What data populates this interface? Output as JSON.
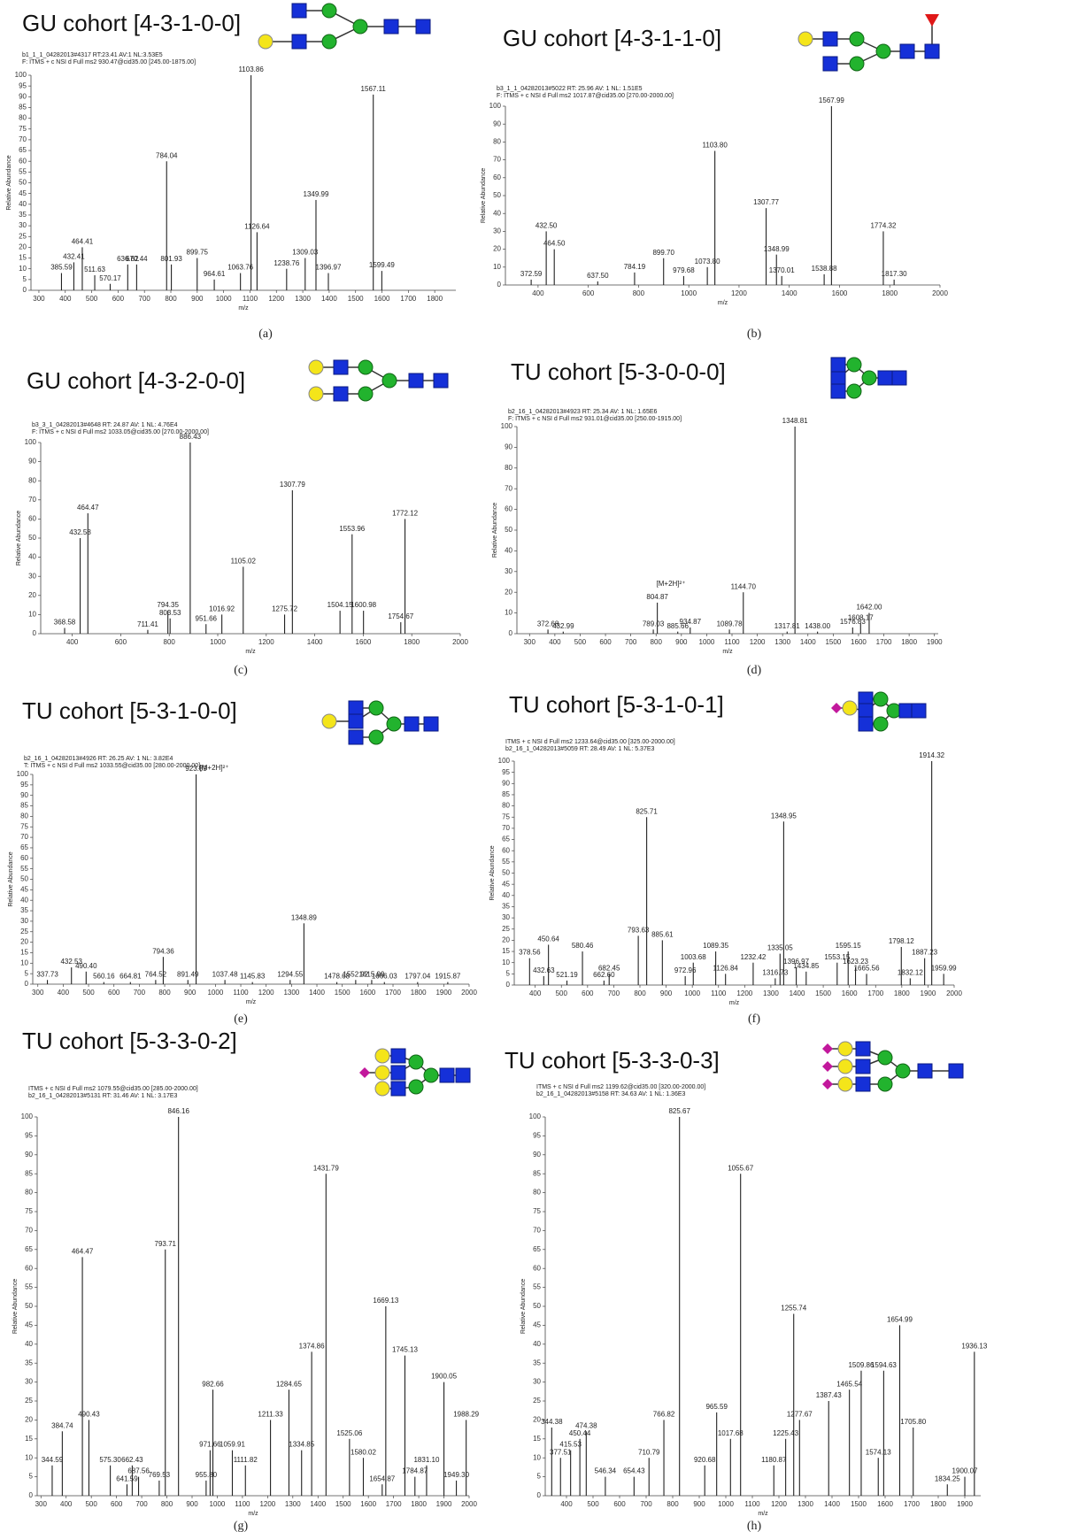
{
  "chart_data": [
    {
      "type": "stem",
      "title": "GU cohort [4-3-1-0-0]",
      "caption": "(a)",
      "x_label": "m/z",
      "y_label": "Relative Abundance",
      "header_lines": [
        "b1_1_1_04282013#4317 RT:23.41 AV:1 NL:3.53E5",
        "F: ITMS + c NSI d Full ms2 930.47@cid35.00 [245.00-1875.00]"
      ],
      "header_colors": [
        "#2a3aa8",
        "#d02020"
      ],
      "color": "#222222",
      "xlim": [
        270,
        1880
      ],
      "ylim": [
        0,
        100
      ],
      "xticks": [
        300,
        400,
        500,
        600,
        700,
        800,
        900,
        1000,
        1100,
        1200,
        1300,
        1400,
        1500,
        1600,
        1700,
        1800
      ],
      "yticks": [
        0,
        5,
        10,
        15,
        20,
        25,
        30,
        35,
        40,
        45,
        50,
        55,
        60,
        65,
        70,
        75,
        80,
        85,
        90,
        95,
        100
      ],
      "x": [
        385.59,
        432.41,
        464.41,
        511.63,
        570.17,
        636.62,
        670.44,
        784.04,
        801.93,
        899.75,
        964.61,
        1063.76,
        1103.86,
        1126.64,
        1238.76,
        1309.03,
        1349.99,
        1396.97,
        1567.11,
        1599.49
      ],
      "x_labels": [
        "385.59",
        "432.41",
        "464.41",
        "511.63",
        "570.17",
        "636.62",
        "670.44",
        "784.04",
        "801.93",
        "899.75",
        "964.61",
        "1063.76",
        "1103.86",
        "1126.64",
        "1238.76",
        "1309.03",
        "1349.99",
        "1396.97",
        "1567.11",
        "1599.49"
      ],
      "values": [
        8,
        13,
        20,
        7,
        3,
        12,
        12,
        60,
        12,
        15,
        5,
        8,
        100,
        27,
        10,
        15,
        42,
        8,
        91,
        9
      ]
    },
    {
      "type": "stem",
      "title": "GU cohort [4-3-1-1-0]",
      "caption": "(b)",
      "x_label": "m/z",
      "y_label": "Relative Abundance",
      "header_lines": [
        "b3_1_1_04282013#5022 RT: 25.96 AV: 1 NL: 1.51E5",
        "F: ITMS + c NSI d Full ms2 1017.87@cid35.00 [270.00-2000.00]"
      ],
      "header_colors": [
        "#2a3aa8",
        "#d02020"
      ],
      "color": "#222222",
      "xlim": [
        270,
        2000
      ],
      "ylim": [
        0,
        100
      ],
      "xticks": [
        400,
        600,
        800,
        1000,
        1200,
        1400,
        1600,
        1800,
        2000
      ],
      "yticks": [
        0,
        10,
        20,
        30,
        40,
        50,
        60,
        70,
        80,
        90,
        100
      ],
      "x": [
        372.59,
        432.5,
        464.5,
        637.5,
        784.19,
        899.7,
        979.68,
        1073.8,
        1103.8,
        1307.77,
        1348.99,
        1370.01,
        1538.88,
        1567.99,
        1774.32,
        1817.3
      ],
      "x_labels": [
        "372.59",
        "432.50",
        "464.50",
        "637.50",
        "784.19",
        "899.70",
        "979.68",
        "1073.80",
        "1103.80",
        "1307.77",
        "1348.99",
        "1370.01",
        "1538.88",
        "1567.99",
        "1774.32",
        "1817.30"
      ],
      "values": [
        3,
        30,
        20,
        2,
        7,
        15,
        5,
        10,
        75,
        43,
        17,
        5,
        6,
        100,
        30,
        3
      ]
    },
    {
      "type": "stem",
      "title": "GU cohort [4-3-2-0-0]",
      "caption": "(c)",
      "x_label": "m/z",
      "y_label": "Relative Abundance",
      "header_lines": [
        "b3_3_1_04282013#4648 RT: 24.87 AV: 1 NL: 4.76E4",
        "F: ITMS + c NSI d Full ms2 1033.05@cid35.00 [270.00-2000.00]"
      ],
      "header_colors": [
        "#2a3aa8",
        "#d02020"
      ],
      "color": "#222222",
      "xlim": [
        270,
        2000
      ],
      "ylim": [
        0,
        100
      ],
      "xticks": [
        400,
        600,
        800,
        1000,
        1200,
        1400,
        1600,
        1800,
        2000
      ],
      "yticks": [
        0,
        10,
        20,
        30,
        40,
        50,
        60,
        70,
        80,
        90,
        100
      ],
      "x": [
        368.58,
        432.58,
        464.47,
        711.41,
        794.35,
        803.53,
        886.43,
        951.66,
        1016.92,
        1105.02,
        1275.72,
        1307.79,
        1504.15,
        1553.96,
        1600.98,
        1754.67,
        1772.12
      ],
      "x_labels": [
        "368.58",
        "432.58",
        "464.47",
        "711.41",
        "794.35",
        "803.53",
        "886.43",
        "951.66",
        "1016.92",
        "1105.02",
        "1275.72",
        "1307.79",
        "1504.15",
        "1553.96",
        "1600.98",
        "1754.67",
        "1772.12"
      ],
      "values": [
        3,
        50,
        63,
        2,
        12,
        8,
        100,
        5,
        10,
        35,
        10,
        75,
        12,
        52,
        12,
        6,
        60
      ]
    },
    {
      "type": "stem",
      "title": "TU cohort [5-3-0-0-0]",
      "caption": "(d)",
      "x_label": "m/z",
      "y_label": "Relative Abundance",
      "annotation": "[M+2H]²⁺",
      "header_lines": [
        "b2_16_1_04282013#4923 RT: 25.34 AV: 1 NL: 1.65E6",
        "F: ITMS + c NSI d Full ms2 931.01@cid35.00 [250.00-1915.00]"
      ],
      "header_colors": [
        "#2a3aa8",
        "#d02020"
      ],
      "color": "#222222",
      "xlim": [
        250,
        1915
      ],
      "ylim": [
        0,
        100
      ],
      "xticks": [
        300,
        400,
        500,
        600,
        700,
        800,
        900,
        1000,
        1100,
        1200,
        1300,
        1400,
        1500,
        1600,
        1700,
        1800,
        1900
      ],
      "yticks": [
        0,
        10,
        20,
        30,
        40,
        50,
        60,
        70,
        80,
        90,
        100
      ],
      "x": [
        372.68,
        432.99,
        789.03,
        804.87,
        885.66,
        934.87,
        1089.78,
        1144.7,
        1317.81,
        1348.81,
        1438.0,
        1576.83,
        1608.17,
        1642.0
      ],
      "x_labels": [
        "372.68",
        "432.99",
        "789.03",
        "804.87",
        "885.66",
        "934.87",
        "1089.78",
        "1144.70",
        "1317.81",
        "1348.81",
        "1438.00",
        "1576.83",
        "1608.17",
        "1642.00"
      ],
      "values": [
        2,
        1,
        2,
        15,
        1,
        3,
        2,
        20,
        1,
        100,
        1,
        3,
        5,
        10
      ]
    },
    {
      "type": "stem",
      "title": "TU cohort [5-3-1-0-0]",
      "caption": "(e)",
      "x_label": "m/z",
      "y_label": "Relative Abundance",
      "annotation": "[M+2H]²⁺",
      "header_lines": [
        "b2_16_1_04282013#4926 RT: 26.25 AV: 1 NL: 3.82E4",
        "T: ITMS + c NSI d Full ms2 1033.55@cid35.00 [280.00-2000.00]"
      ],
      "header_colors": [
        "#2a3aa8",
        "#d02020"
      ],
      "color": "#222222",
      "xlim": [
        280,
        2000
      ],
      "ylim": [
        0,
        100
      ],
      "xticks": [
        300,
        400,
        500,
        600,
        700,
        800,
        900,
        1000,
        1100,
        1200,
        1300,
        1400,
        1500,
        1600,
        1700,
        1800,
        1900,
        2000
      ],
      "yticks": [
        0,
        5,
        10,
        15,
        20,
        25,
        30,
        35,
        40,
        45,
        50,
        55,
        60,
        65,
        70,
        75,
        80,
        85,
        90,
        95,
        100
      ],
      "x": [
        337.73,
        432.53,
        490.4,
        560.16,
        664.81,
        764.52,
        794.36,
        891.49,
        923.89,
        1037.48,
        1145.83,
        1294.55,
        1348.89,
        1478.68,
        1552.92,
        1615.99,
        1666.03,
        1797.04,
        1915.87
      ],
      "x_labels": [
        "337.73",
        "432.53",
        "490.40",
        "560.16",
        "664.81",
        "764.52",
        "794.36",
        "891.49",
        "923.89",
        "1037.48",
        "1145.83",
        "1294.55",
        "1348.89",
        "1478.68",
        "1552.92",
        "1615.99",
        "1666.03",
        "1797.04",
        "1915.87"
      ],
      "values": [
        2,
        8,
        6,
        1,
        1,
        2,
        13,
        2,
        100,
        2,
        1,
        2,
        29,
        1,
        2,
        2,
        1,
        1,
        1
      ]
    },
    {
      "type": "stem",
      "title": "TU cohort [5-3-1-0-1]",
      "caption": "(f)",
      "x_label": "m/z",
      "y_label": "Relative Abundance",
      "header_lines": [
        "ITMS + c NSI d Full ms2 1233.64@cid35.00 [325.00-2000.00]",
        "b2_16_1_04282013#5059 RT: 28.49 AV: 1 NL: 5.37E3"
      ],
      "header_colors": [
        "#2a3aa8",
        "#2a3aa8"
      ],
      "color": "#222222",
      "xlim": [
        320,
        2000
      ],
      "ylim": [
        0,
        100
      ],
      "xticks": [
        400,
        500,
        600,
        700,
        800,
        900,
        1000,
        1100,
        1200,
        1300,
        1400,
        1500,
        1600,
        1700,
        1800,
        1900,
        2000
      ],
      "yticks": [
        0,
        5,
        10,
        15,
        20,
        25,
        30,
        35,
        40,
        45,
        50,
        55,
        60,
        65,
        70,
        75,
        80,
        85,
        90,
        95,
        100
      ],
      "x": [
        378.56,
        432.63,
        450.64,
        521.19,
        580.46,
        662.6,
        682.45,
        793.63,
        825.71,
        885.61,
        972.96,
        1003.68,
        1089.35,
        1126.84,
        1232.42,
        1316.73,
        1335.05,
        1348.95,
        1396.97,
        1434.85,
        1553.15,
        1595.15,
        1623.23,
        1665.56,
        1798.12,
        1832.12,
        1887.23,
        1914.32,
        1959.99
      ],
      "x_labels": [
        "378.56",
        "432.63",
        "450.64",
        "521.19",
        "580.46",
        "662.60",
        "682.45",
        "793.63",
        "825.71",
        "885.61",
        "972.96",
        "1003.68",
        "1089.35",
        "1126.84",
        "1232.42",
        "1316.73",
        "1335.05",
        "1348.95",
        "1396.97",
        "1434.85",
        "1553.15",
        "1595.15",
        "1623.23",
        "1665.56",
        "1798.12",
        "1832.12",
        "1887.23",
        "1914.32",
        "1959.99"
      ],
      "values": [
        12,
        4,
        18,
        2,
        15,
        2,
        5,
        22,
        75,
        20,
        4,
        10,
        15,
        5,
        10,
        3,
        14,
        73,
        8,
        6,
        10,
        15,
        8,
        5,
        17,
        3,
        12,
        100,
        5
      ]
    },
    {
      "type": "stem",
      "title": "TU cohort [5-3-3-0-2]",
      "caption": "(g)",
      "x_label": "m/z",
      "y_label": "Relative Abundance",
      "header_lines": [
        "ITMS + c NSI d Full ms2 1079.55@cid35.00 [285.00-2000.00]",
        "b2_16_1_04282013#5131 RT: 31.46 AV: 1 NL: 3.17E3"
      ],
      "header_colors": [
        "#d02020",
        "#2a3aa8"
      ],
      "color": "#222222",
      "xlim": [
        285,
        2000
      ],
      "ylim": [
        0,
        100
      ],
      "xticks": [
        300,
        400,
        500,
        600,
        700,
        800,
        900,
        1000,
        1100,
        1200,
        1300,
        1400,
        1500,
        1600,
        1700,
        1800,
        1900,
        2000
      ],
      "yticks": [
        0,
        5,
        10,
        15,
        20,
        25,
        30,
        35,
        40,
        45,
        50,
        55,
        60,
        65,
        70,
        75,
        80,
        85,
        90,
        95,
        100
      ],
      "x": [
        344.59,
        384.74,
        464.47,
        490.43,
        575.3,
        641.59,
        662.43,
        687.56,
        769.53,
        793.71,
        846.16,
        955.8,
        971.66,
        982.66,
        1059.91,
        1111.82,
        1211.33,
        1284.65,
        1334.85,
        1374.86,
        1431.79,
        1525.06,
        1580.02,
        1654.87,
        1669.13,
        1745.13,
        1784.87,
        1831.1,
        1900.05,
        1949.3,
        1988.29
      ],
      "x_labels": [
        "344.59",
        "384.74",
        "464.47",
        "490.43",
        "575.30",
        "641.59",
        "662.43",
        "687.56",
        "769.53",
        "793.71",
        "846.16",
        "955.80",
        "971.66",
        "982.66",
        "1059.91",
        "1111.82",
        "1211.33",
        "1284.65",
        "1334.85",
        "1374.86",
        "1431.79",
        "1525.06",
        "1580.02",
        "1654.87",
        "1669.13",
        "1745.13",
        "1784.87",
        "1831.10",
        "1900.05",
        "1949.30",
        "1988.29"
      ],
      "values": [
        8,
        17,
        63,
        20,
        8,
        3,
        8,
        5,
        4,
        65,
        100,
        4,
        12,
        28,
        12,
        8,
        20,
        28,
        12,
        38,
        85,
        15,
        10,
        3,
        50,
        37,
        5,
        8,
        30,
        4,
        20
      ]
    },
    {
      "type": "stem",
      "title": "TU cohort [5-3-3-0-3]",
      "caption": "(h)",
      "x_label": "m/z",
      "y_label": "Relative Abundance",
      "header_lines": [
        "ITMS + c NSI d Full ms2 1199.62@cid35.00 [320.00-2000.00]",
        "b2_16_1_04282013#5158 RT: 34.63 AV: 1 NL: 1.36E3"
      ],
      "header_colors": [
        "#2a3aa8",
        "#2a3aa8"
      ],
      "color": "#222222",
      "xlim": [
        320,
        1960
      ],
      "ylim": [
        0,
        100
      ],
      "xticks": [
        400,
        500,
        600,
        700,
        800,
        900,
        1000,
        1100,
        1200,
        1300,
        1400,
        1500,
        1600,
        1700,
        1800,
        1900
      ],
      "yticks": [
        0,
        5,
        10,
        15,
        20,
        25,
        30,
        35,
        40,
        45,
        50,
        55,
        60,
        65,
        70,
        75,
        80,
        85,
        90,
        95,
        100
      ],
      "x": [
        344.38,
        377.51,
        415.53,
        450.44,
        474.38,
        546.34,
        654.43,
        710.79,
        766.82,
        825.67,
        920.68,
        965.59,
        1017.68,
        1055.67,
        1180.87,
        1225.43,
        1255.74,
        1277.67,
        1387.43,
        1465.54,
        1509.86,
        1574.13,
        1594.63,
        1654.99,
        1705.8,
        1834.25,
        1900.07,
        1936.13
      ],
      "x_labels": [
        "344.38",
        "377.51",
        "415.53",
        "450.44",
        "474.38",
        "546.34",
        "654.43",
        "710.79",
        "766.82",
        "825.67",
        "920.68",
        "965.59",
        "1017.68",
        "1055.67",
        "1180.87",
        "1225.43",
        "1255.74",
        "1277.67",
        "1387.43",
        "1465.54",
        "1509.86",
        "1574.13",
        "1594.63",
        "1654.99",
        "1705.80",
        "1834.25",
        "1900.07",
        "1936.13"
      ],
      "values": [
        18,
        10,
        12,
        15,
        17,
        5,
        5,
        10,
        20,
        100,
        8,
        22,
        15,
        85,
        8,
        15,
        48,
        20,
        25,
        28,
        33,
        10,
        33,
        45,
        18,
        3,
        5,
        38
      ]
    }
  ]
}
